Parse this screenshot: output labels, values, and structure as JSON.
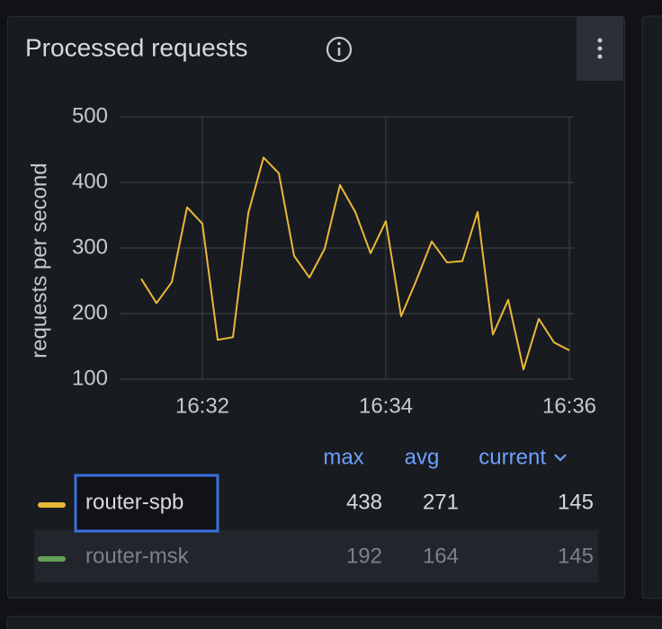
{
  "panel": {
    "title": "Processed requests"
  },
  "chart_data": {
    "type": "line",
    "ylabel": "requests per second",
    "categories": [
      null,
      null,
      null,
      null,
      "16:32",
      null,
      null,
      null,
      null,
      null,
      null,
      null,
      null,
      null,
      null,
      null,
      "16:34",
      null,
      null,
      null,
      null,
      null,
      null,
      null,
      null,
      null,
      null,
      null,
      "16:36"
    ],
    "series": [
      {
        "name": "router-spb",
        "color": "#EAB839",
        "values": [
          253,
          216,
          248,
          362,
          337,
          160,
          164,
          353,
          438,
          414,
          288,
          255,
          299,
          396,
          355,
          292,
          341,
          196,
          251,
          310,
          278,
          280,
          355,
          168,
          221,
          115,
          192,
          156,
          144
        ],
        "stats": [
          438,
          271,
          145
        ]
      },
      {
        "name": "router-msk",
        "color": "#73BF69",
        "hidden": true,
        "stats": [
          192,
          164,
          145
        ]
      }
    ],
    "legend_columns": [
      "max",
      "avg",
      "current"
    ],
    "ylim": [
      100,
      500
    ],
    "yticks": [
      100,
      200,
      300,
      400,
      500
    ],
    "grid": true
  }
}
